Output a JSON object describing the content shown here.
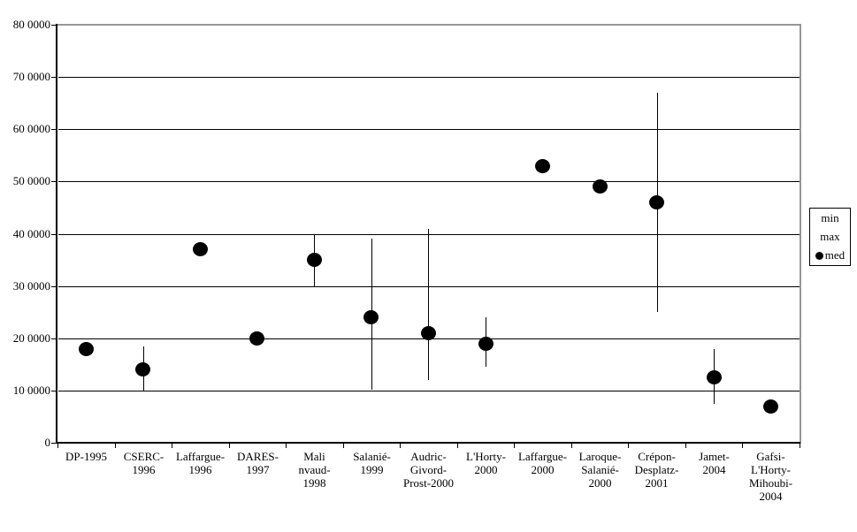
{
  "chart_data": {
    "type": "scatter",
    "title": "",
    "xlabel": "",
    "ylabel": "",
    "ylim": [
      0,
      800000
    ],
    "ytick_interval": 100000,
    "ytick_labels": [
      "0",
      "10 0000",
      "20 0000",
      "30 0000",
      "40 0000",
      "50 0000",
      "60 0000",
      "70 0000",
      "80 0000"
    ],
    "grid": true,
    "categories": [
      "DP-1995",
      "CSERC-1996",
      "Laffargue-1996",
      "DARES-1997",
      "Malinvaud-1998",
      "Salanié-1999",
      "Audric-Givord-Prost-2000",
      "L'Horty-2000",
      "Laffargue-2000",
      "Laroque-Salanié-2000",
      "Crépon-Desplatz-2001",
      "Jamet-2004",
      "Gafsi-L'Horty-Mihoubi-2004"
    ],
    "category_label_lines": [
      [
        "DP-1995"
      ],
      [
        "CSERC-",
        "1996"
      ],
      [
        "Laffargue-",
        "1996"
      ],
      [
        "DARES-",
        "1997"
      ],
      [
        "Mali",
        "nvaud-",
        "1998"
      ],
      [
        "Salanié-",
        "1999"
      ],
      [
        "Audric-",
        "Givord-",
        "Prost-2000"
      ],
      [
        "L'Horty-",
        "2000"
      ],
      [
        "Laffargue-",
        "2000"
      ],
      [
        "Laroque-",
        "Salanié-",
        "2000"
      ],
      [
        "Crépon-",
        "Desplatz-",
        "2001"
      ],
      [
        "Jamet-",
        "2004"
      ],
      [
        "Gafsi-",
        "L'Horty-",
        "Mihoubi-",
        "2004"
      ]
    ],
    "series": [
      {
        "name": "med",
        "marker": "filled-circle",
        "values": [
          180000,
          140000,
          370000,
          200000,
          350000,
          240000,
          210000,
          190000,
          530000,
          490000,
          460000,
          125000,
          70000
        ]
      },
      {
        "name": "min",
        "marker": "none",
        "values": [
          null,
          100000,
          null,
          null,
          300000,
          100000,
          120000,
          145000,
          null,
          null,
          250000,
          75000,
          null
        ]
      },
      {
        "name": "max",
        "marker": "none",
        "values": [
          null,
          185000,
          null,
          null,
          400000,
          390000,
          410000,
          240000,
          null,
          null,
          670000,
          180000,
          null
        ]
      }
    ],
    "legend": {
      "position": "right",
      "entries": [
        {
          "label": "min",
          "marker": "none"
        },
        {
          "label": "max",
          "marker": "none"
        },
        {
          "label": "med",
          "marker": "filled-circle"
        }
      ]
    }
  },
  "colors": {
    "data": "#000000",
    "grid": "#000000",
    "axis": "#000000",
    "plot_border": "#969696",
    "background": "#ffffff"
  }
}
